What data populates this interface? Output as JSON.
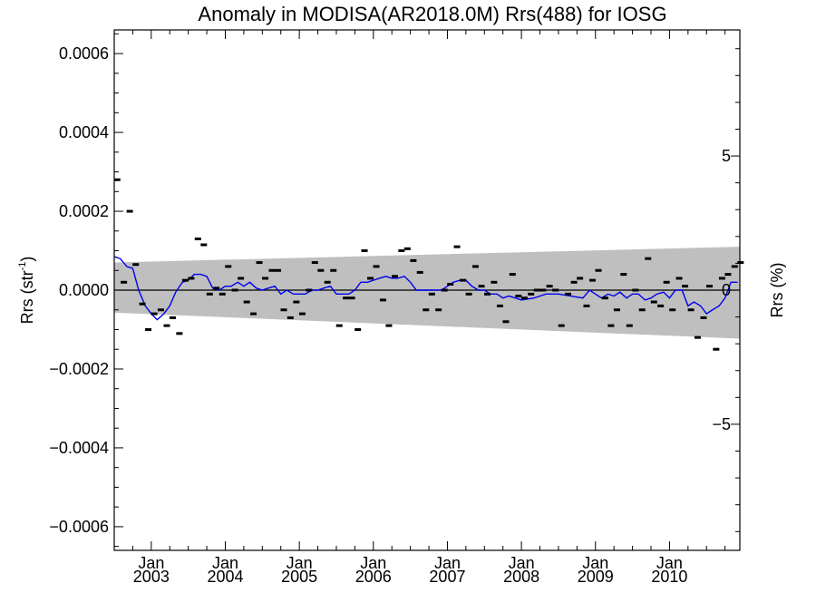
{
  "chart_data": {
    "type": "line",
    "title": "Anomaly in MODISA(AR2018.0M) Rrs(488) for IOSG",
    "ylabel": "Rrs (str",
    "ylabel_sup": "-1",
    "ylabel_close": ")",
    "y2label": "Rrs (%)",
    "xlim": [
      2002.5,
      2010.95
    ],
    "ylim": [
      -0.00066,
      0.00066
    ],
    "y2lim": [
      -9.7,
      9.7
    ],
    "grid": false,
    "yticks": [
      -0.0006,
      -0.0004,
      -0.0002,
      0.0,
      0.0002,
      0.0004,
      0.0006
    ],
    "ytick_labels": [
      "−0.0006",
      "−0.0004",
      "−0.0002",
      "0.0000",
      "0.0002",
      "0.0004",
      "0.0006"
    ],
    "y2ticks": [
      -5,
      0,
      5
    ],
    "y2tick_labels": [
      "−5",
      "0",
      "5"
    ],
    "xticks": [
      2003.0,
      2004.0,
      2005.0,
      2006.0,
      2007.0,
      2008.0,
      2009.0,
      2010.0
    ],
    "xtick_month": "Jan",
    "xtick_years": [
      "2003",
      "2004",
      "2005",
      "2006",
      "2007",
      "2008",
      "2009",
      "2010"
    ],
    "colors": {
      "smoothed": "#0000ee",
      "band": "#bfbfbf",
      "points": "#000000"
    },
    "band": {
      "x": [
        2002.5,
        2010.95
      ],
      "upper": [
        7e-05,
        0.00011
      ],
      "lower": [
        -5.7e-05,
        -0.000123
      ]
    },
    "series": [
      {
        "type": "points",
        "x": [
          2002.54,
          2002.63,
          2002.71,
          2002.79,
          2002.88,
          2002.96,
          2003.04,
          2003.13,
          2003.21,
          2003.29,
          2003.38,
          2003.46,
          2003.54,
          2003.63,
          2003.71,
          2003.79,
          2003.88,
          2003.96,
          2004.04,
          2004.13,
          2004.21,
          2004.29,
          2004.38,
          2004.46,
          2004.54,
          2004.63,
          2004.71,
          2004.79,
          2004.88,
          2004.96,
          2005.04,
          2005.13,
          2005.21,
          2005.29,
          2005.38,
          2005.46,
          2005.54,
          2005.63,
          2005.71,
          2005.79,
          2005.88,
          2005.96,
          2006.04,
          2006.13,
          2006.21,
          2006.29,
          2006.38,
          2006.46,
          2006.54,
          2006.63,
          2006.71,
          2006.79,
          2006.88,
          2006.96,
          2007.04,
          2007.13,
          2007.21,
          2007.29,
          2007.38,
          2007.46,
          2007.54,
          2007.63,
          2007.71,
          2007.79,
          2007.88,
          2007.96,
          2008.04,
          2008.13,
          2008.21,
          2008.29,
          2008.38,
          2008.46,
          2008.54,
          2008.63,
          2008.71,
          2008.79,
          2008.88,
          2008.96,
          2009.04,
          2009.13,
          2009.21,
          2009.29,
          2009.38,
          2009.46,
          2009.54,
          2009.63,
          2009.71,
          2009.79,
          2009.88,
          2009.96,
          2010.04,
          2010.13,
          2010.21,
          2010.29,
          2010.38,
          2010.46,
          2010.54,
          2010.63,
          2010.71,
          2010.79,
          2010.88,
          2010.96
        ],
        "y": [
          0.00028,
          2e-05,
          0.0002,
          6.5e-05,
          -3.5e-05,
          -0.0001,
          -6e-05,
          -5e-05,
          -9e-05,
          -7e-05,
          -0.00011,
          2.5e-05,
          3e-05,
          0.00013,
          0.000115,
          -1e-05,
          5e-06,
          -1e-05,
          6e-05,
          0.0,
          3e-05,
          -3e-05,
          -6e-05,
          7e-05,
          3e-05,
          5e-05,
          5e-05,
          -5e-05,
          -7e-05,
          -3e-05,
          -6e-05,
          0.0,
          7e-05,
          5e-05,
          2e-05,
          5e-05,
          -9e-05,
          -2e-05,
          -2e-05,
          -0.0001,
          0.0001,
          3e-05,
          6e-05,
          -2.5e-05,
          -9e-05,
          3.5e-05,
          0.0001,
          0.000105,
          7.5e-05,
          4.5e-05,
          -5e-05,
          -1e-05,
          -5e-05,
          0.0,
          1.5e-05,
          0.00011,
          2.5e-05,
          -1e-05,
          6e-05,
          1e-05,
          -1e-05,
          2e-05,
          -4e-05,
          -8e-05,
          4e-05,
          -1.5e-05,
          -2e-05,
          -1e-05,
          0.0,
          0.0,
          1e-05,
          0.0,
          -9e-05,
          -1e-05,
          2e-05,
          3e-05,
          -4e-05,
          2.5e-05,
          5e-05,
          -2e-05,
          -9e-05,
          -5e-05,
          4e-05,
          -9e-05,
          0.0,
          -5e-05,
          8e-05,
          -3e-05,
          -4e-05,
          2e-05,
          -5e-05,
          3e-05,
          1e-05,
          -5e-05,
          -0.00012,
          -7e-05,
          1e-05,
          -0.00015,
          3e-05,
          4e-05,
          6e-05,
          7e-05
        ]
      },
      {
        "type": "line",
        "x": [
          2002.5,
          2002.58,
          2002.67,
          2002.75,
          2002.83,
          2002.92,
          2003.0,
          2003.08,
          2003.17,
          2003.25,
          2003.33,
          2003.42,
          2003.5,
          2003.58,
          2003.67,
          2003.75,
          2003.83,
          2003.92,
          2004.0,
          2004.08,
          2004.17,
          2004.25,
          2004.33,
          2004.42,
          2004.5,
          2004.58,
          2004.67,
          2004.75,
          2004.83,
          2004.92,
          2005.0,
          2005.08,
          2005.17,
          2005.25,
          2005.33,
          2005.42,
          2005.5,
          2005.58,
          2005.67,
          2005.75,
          2005.83,
          2005.92,
          2006.0,
          2006.08,
          2006.17,
          2006.25,
          2006.33,
          2006.42,
          2006.5,
          2006.58,
          2006.67,
          2006.75,
          2006.83,
          2006.92,
          2007.0,
          2007.08,
          2007.17,
          2007.25,
          2007.33,
          2007.42,
          2007.5,
          2007.58,
          2007.67,
          2007.75,
          2007.83,
          2007.92,
          2008.0,
          2008.17,
          2008.33,
          2008.5,
          2008.67,
          2008.83,
          2008.92,
          2009.0,
          2009.08,
          2009.17,
          2009.25,
          2009.33,
          2009.42,
          2009.5,
          2009.58,
          2009.67,
          2009.75,
          2009.83,
          2009.92,
          2010.0,
          2010.08,
          2010.17,
          2010.25,
          2010.33,
          2010.42,
          2010.5,
          2010.58,
          2010.67,
          2010.75,
          2010.83,
          2010.92
        ],
        "y": [
          8.5e-05,
          8e-05,
          6e-05,
          5.5e-05,
          0.0,
          -4e-05,
          -6e-05,
          -7.5e-05,
          -6e-05,
          -4e-05,
          -5e-06,
          2e-05,
          2.5e-05,
          4e-05,
          4e-05,
          3.5e-05,
          5e-06,
          0.0,
          1e-05,
          1e-05,
          2e-05,
          1e-05,
          2e-05,
          5e-06,
          0.0,
          5e-06,
          1e-05,
          -1e-05,
          0.0,
          -1e-05,
          -1e-05,
          -1e-05,
          0.0,
          0.0,
          5e-06,
          1e-05,
          -1e-05,
          -1e-05,
          -1e-05,
          0.0,
          2e-05,
          2e-05,
          2.5e-05,
          3e-05,
          3.5e-05,
          3e-05,
          3e-05,
          3.5e-05,
          2e-05,
          0.0,
          0.0,
          0.0,
          0.0,
          0.0,
          1e-05,
          2e-05,
          2.5e-05,
          2.5e-05,
          1e-05,
          0.0,
          0.0,
          -1e-05,
          -1e-05,
          -2e-05,
          -1.5e-05,
          -2e-05,
          -2.5e-05,
          -2e-05,
          -1e-05,
          -1e-05,
          -1.5e-05,
          -2e-05,
          0.0,
          -1e-05,
          -2e-05,
          -1e-05,
          -1.5e-05,
          -5e-06,
          -2e-05,
          -1e-05,
          -1e-05,
          -2.5e-05,
          -2e-05,
          -1e-05,
          -5e-06,
          -2e-05,
          0.0,
          0.0,
          -4e-05,
          -3e-05,
          -4e-05,
          -6e-05,
          -5e-05,
          -4e-05,
          -2e-05,
          2e-05,
          2e-05
        ]
      }
    ]
  }
}
